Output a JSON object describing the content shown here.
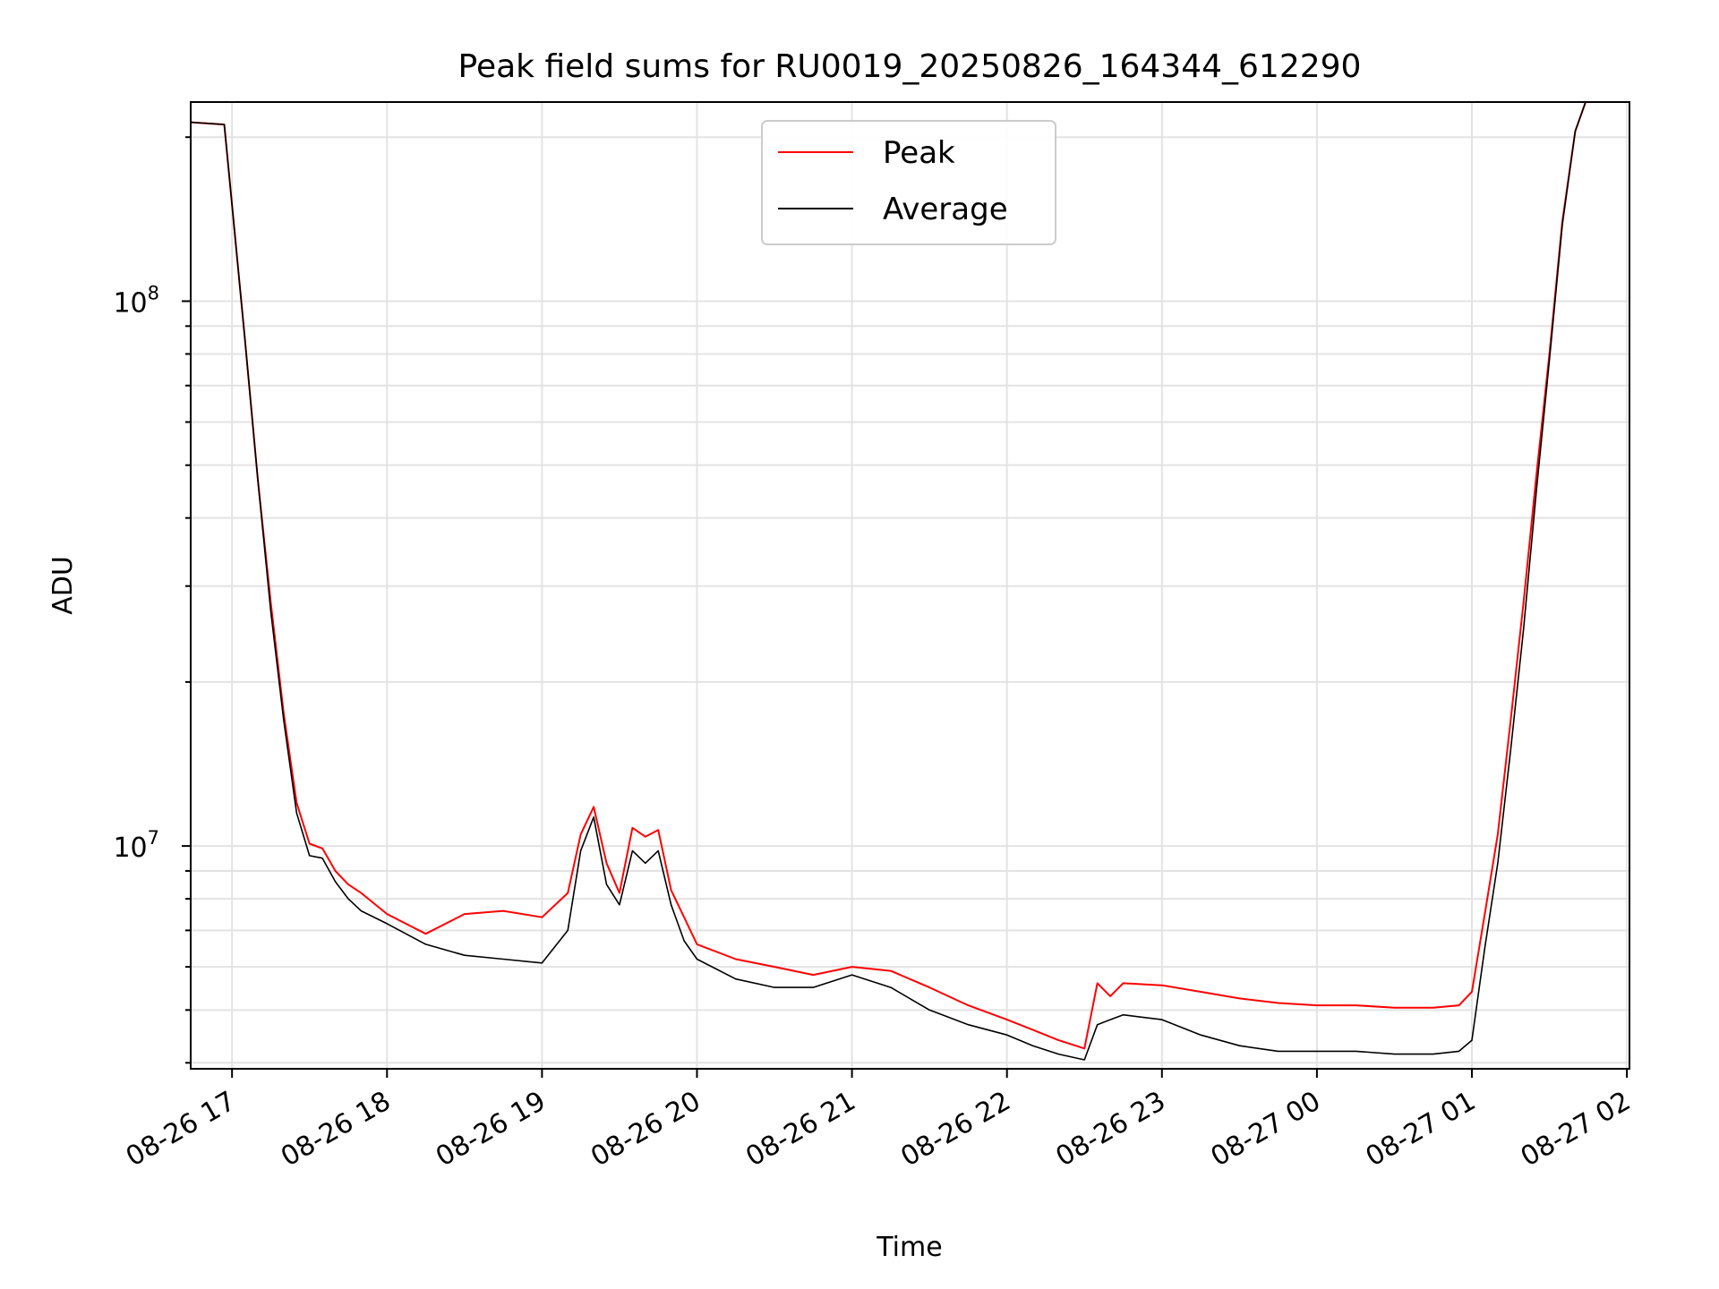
{
  "chart_data": {
    "type": "line",
    "title": "Peak field sums for RU0019_20250826_164344_612290",
    "xlabel": "Time",
    "ylabel": "ADU",
    "yscale": "log",
    "xlim": [
      "2025-08-26 16:44",
      "2025-08-27 02:01"
    ],
    "ylim": [
      3900000,
      232000000
    ],
    "x_ticks": [
      {
        "value": "2025-08-26 17:00",
        "label": "08-26 17"
      },
      {
        "value": "2025-08-26 18:00",
        "label": "08-26 18"
      },
      {
        "value": "2025-08-26 19:00",
        "label": "08-26 19"
      },
      {
        "value": "2025-08-26 20:00",
        "label": "08-26 20"
      },
      {
        "value": "2025-08-26 21:00",
        "label": "08-26 21"
      },
      {
        "value": "2025-08-26 22:00",
        "label": "08-26 22"
      },
      {
        "value": "2025-08-26 23:00",
        "label": "08-26 23"
      },
      {
        "value": "2025-08-27 00:00",
        "label": "08-27 00"
      },
      {
        "value": "2025-08-27 01:00",
        "label": "08-27 01"
      },
      {
        "value": "2025-08-27 02:00",
        "label": "08-27 02"
      }
    ],
    "y_ticks": [
      {
        "value": 10000000,
        "base": "10",
        "exp": "7"
      },
      {
        "value": 100000000,
        "base": "10",
        "exp": "8"
      }
    ],
    "grid": true,
    "legend": "upper center",
    "series": [
      {
        "name": "Peak",
        "color": "#ff0000",
        "x": [
          "2025-08-26 16:44",
          "2025-08-26 16:57",
          "2025-08-26 17:00",
          "2025-08-26 17:05",
          "2025-08-26 17:10",
          "2025-08-26 17:15",
          "2025-08-26 17:20",
          "2025-08-26 17:25",
          "2025-08-26 17:30",
          "2025-08-26 17:35",
          "2025-08-26 17:40",
          "2025-08-26 17:45",
          "2025-08-26 17:50",
          "2025-08-26 18:00",
          "2025-08-26 18:15",
          "2025-08-26 18:30",
          "2025-08-26 18:45",
          "2025-08-26 19:00",
          "2025-08-26 19:10",
          "2025-08-26 19:15",
          "2025-08-26 19:20",
          "2025-08-26 19:25",
          "2025-08-26 19:30",
          "2025-08-26 19:35",
          "2025-08-26 19:40",
          "2025-08-26 19:45",
          "2025-08-26 19:50",
          "2025-08-26 19:55",
          "2025-08-26 20:00",
          "2025-08-26 20:15",
          "2025-08-26 20:30",
          "2025-08-26 20:45",
          "2025-08-26 21:00",
          "2025-08-26 21:15",
          "2025-08-26 21:30",
          "2025-08-26 21:45",
          "2025-08-26 22:00",
          "2025-08-26 22:10",
          "2025-08-26 22:20",
          "2025-08-26 22:30",
          "2025-08-26 22:35",
          "2025-08-26 22:40",
          "2025-08-26 22:45",
          "2025-08-26 23:00",
          "2025-08-26 23:15",
          "2025-08-26 23:30",
          "2025-08-26 23:45",
          "2025-08-27 00:00",
          "2025-08-27 00:15",
          "2025-08-27 00:30",
          "2025-08-27 00:45",
          "2025-08-27 00:55",
          "2025-08-27 01:00",
          "2025-08-27 01:05",
          "2025-08-27 01:10",
          "2025-08-27 01:15",
          "2025-08-27 01:20",
          "2025-08-27 01:25",
          "2025-08-27 01:30",
          "2025-08-27 01:35",
          "2025-08-27 01:40",
          "2025-08-27 01:44",
          "2025-08-27 01:50",
          "2025-08-27 02:01"
        ],
        "y": [
          213000000,
          211000000,
          150000000,
          85000000,
          47000000,
          28000000,
          17500000,
          12000000,
          10100000,
          9900000,
          9000000,
          8500000,
          8200000,
          7500000,
          6900000,
          7500000,
          7600000,
          7400000,
          8200000,
          10500000,
          11800000,
          9300000,
          8200000,
          10800000,
          10400000,
          10700000,
          8300000,
          7400000,
          6600000,
          6200000,
          6000000,
          5800000,
          6000000,
          5900000,
          5500000,
          5100000,
          4800000,
          4600000,
          4400000,
          4250000,
          5600000,
          5300000,
          5600000,
          5550000,
          5400000,
          5250000,
          5150000,
          5100000,
          5100000,
          5050000,
          5050000,
          5100000,
          5400000,
          7500000,
          10500000,
          17000000,
          28000000,
          48000000,
          80000000,
          140000000,
          205000000,
          232000000,
          232000000,
          232000000
        ]
      },
      {
        "name": "Average",
        "color": "#000000",
        "x": [
          "2025-08-26 16:44",
          "2025-08-26 16:57",
          "2025-08-26 17:00",
          "2025-08-26 17:05",
          "2025-08-26 17:10",
          "2025-08-26 17:15",
          "2025-08-26 17:20",
          "2025-08-26 17:25",
          "2025-08-26 17:30",
          "2025-08-26 17:35",
          "2025-08-26 17:40",
          "2025-08-26 17:45",
          "2025-08-26 17:50",
          "2025-08-26 18:00",
          "2025-08-26 18:15",
          "2025-08-26 18:30",
          "2025-08-26 18:45",
          "2025-08-26 19:00",
          "2025-08-26 19:10",
          "2025-08-26 19:15",
          "2025-08-26 19:20",
          "2025-08-26 19:25",
          "2025-08-26 19:30",
          "2025-08-26 19:35",
          "2025-08-26 19:40",
          "2025-08-26 19:45",
          "2025-08-26 19:50",
          "2025-08-26 19:55",
          "2025-08-26 20:00",
          "2025-08-26 20:15",
          "2025-08-26 20:30",
          "2025-08-26 20:45",
          "2025-08-26 21:00",
          "2025-08-26 21:15",
          "2025-08-26 21:30",
          "2025-08-26 21:45",
          "2025-08-26 22:00",
          "2025-08-26 22:10",
          "2025-08-26 22:20",
          "2025-08-26 22:30",
          "2025-08-26 22:35",
          "2025-08-26 22:40",
          "2025-08-26 22:45",
          "2025-08-26 23:00",
          "2025-08-26 23:15",
          "2025-08-26 23:30",
          "2025-08-26 23:45",
          "2025-08-27 00:00",
          "2025-08-27 00:15",
          "2025-08-27 00:30",
          "2025-08-27 00:45",
          "2025-08-27 00:55",
          "2025-08-27 01:00",
          "2025-08-27 01:05",
          "2025-08-27 01:10",
          "2025-08-27 01:15",
          "2025-08-27 01:20",
          "2025-08-27 01:25",
          "2025-08-27 01:30",
          "2025-08-27 01:35",
          "2025-08-27 01:40",
          "2025-08-27 01:44",
          "2025-08-27 01:50",
          "2025-08-27 02:01"
        ],
        "y": [
          213000000,
          211000000,
          150000000,
          85000000,
          47000000,
          27000000,
          17000000,
          11500000,
          9600000,
          9500000,
          8600000,
          8000000,
          7600000,
          7200000,
          6600000,
          6300000,
          6200000,
          6100000,
          7000000,
          9800000,
          11300000,
          8500000,
          7800000,
          9800000,
          9300000,
          9800000,
          7800000,
          6700000,
          6200000,
          5700000,
          5500000,
          5500000,
          5800000,
          5500000,
          5000000,
          4700000,
          4500000,
          4300000,
          4150000,
          4050000,
          4700000,
          4800000,
          4900000,
          4800000,
          4500000,
          4300000,
          4200000,
          4200000,
          4200000,
          4150000,
          4150000,
          4200000,
          4400000,
          6500000,
          9300000,
          15000000,
          25000000,
          45000000,
          78000000,
          138000000,
          205000000,
          232000000,
          232000000,
          232000000
        ]
      }
    ]
  }
}
